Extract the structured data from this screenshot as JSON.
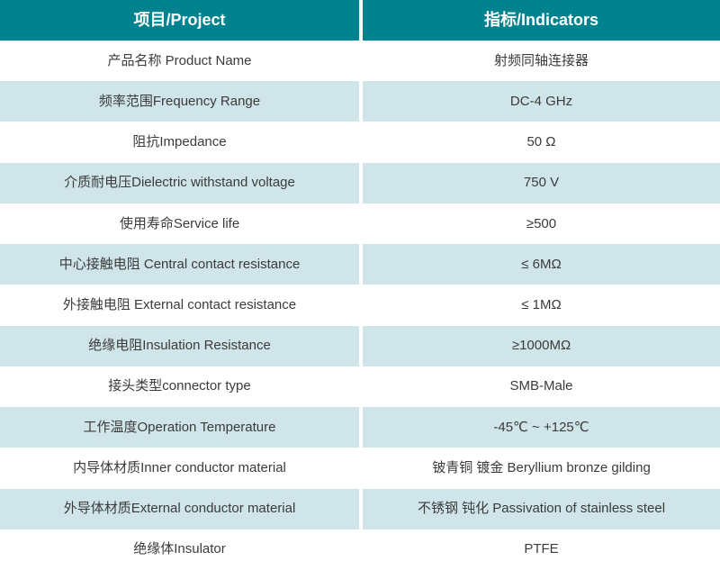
{
  "table": {
    "header": {
      "project_label": "项目/Project",
      "indicators_label": "指标/Indicators"
    },
    "rows": [
      {
        "project": "产品名称 Product Name",
        "indicator": "射频同轴连接器"
      },
      {
        "project": "频率范围Frequency Range",
        "indicator": "DC-4 GHz"
      },
      {
        "project": "阻抗Impedance",
        "indicator": "50 Ω"
      },
      {
        "project": "介质耐电压Dielectric withstand voltage",
        "indicator": "750 V"
      },
      {
        "project": "使用寿命Service life",
        "indicator": "≥500"
      },
      {
        "project": "中心接触电阻 Central contact resistance",
        "indicator": "≤ 6MΩ"
      },
      {
        "project": "外接触电阻 External contact resistance",
        "indicator": "≤ 1MΩ"
      },
      {
        "project": "绝缘电阻Insulation Resistance",
        "indicator": "≥1000MΩ"
      },
      {
        "project": "接头类型connector type",
        "indicator": "SMB-Male"
      },
      {
        "project": "工作温度Operation Temperature",
        "indicator": "-45℃ ~ +125℃"
      },
      {
        "project": "内导体材质Inner conductor material",
        "indicator": "铍青铜 镀金 Beryllium bronze gilding"
      },
      {
        "project": "外导体材质External conductor material",
        "indicator": "不锈钢 钝化  Passivation of stainless steel"
      },
      {
        "project": "绝缘体Insulator",
        "indicator": "PTFE"
      }
    ],
    "colors": {
      "header_bg": "#00828F",
      "header_text": "#ffffff",
      "row_alt_bg": "#cfe5e9",
      "row_bg": "#ffffff",
      "text": "#3b3b3b"
    }
  }
}
